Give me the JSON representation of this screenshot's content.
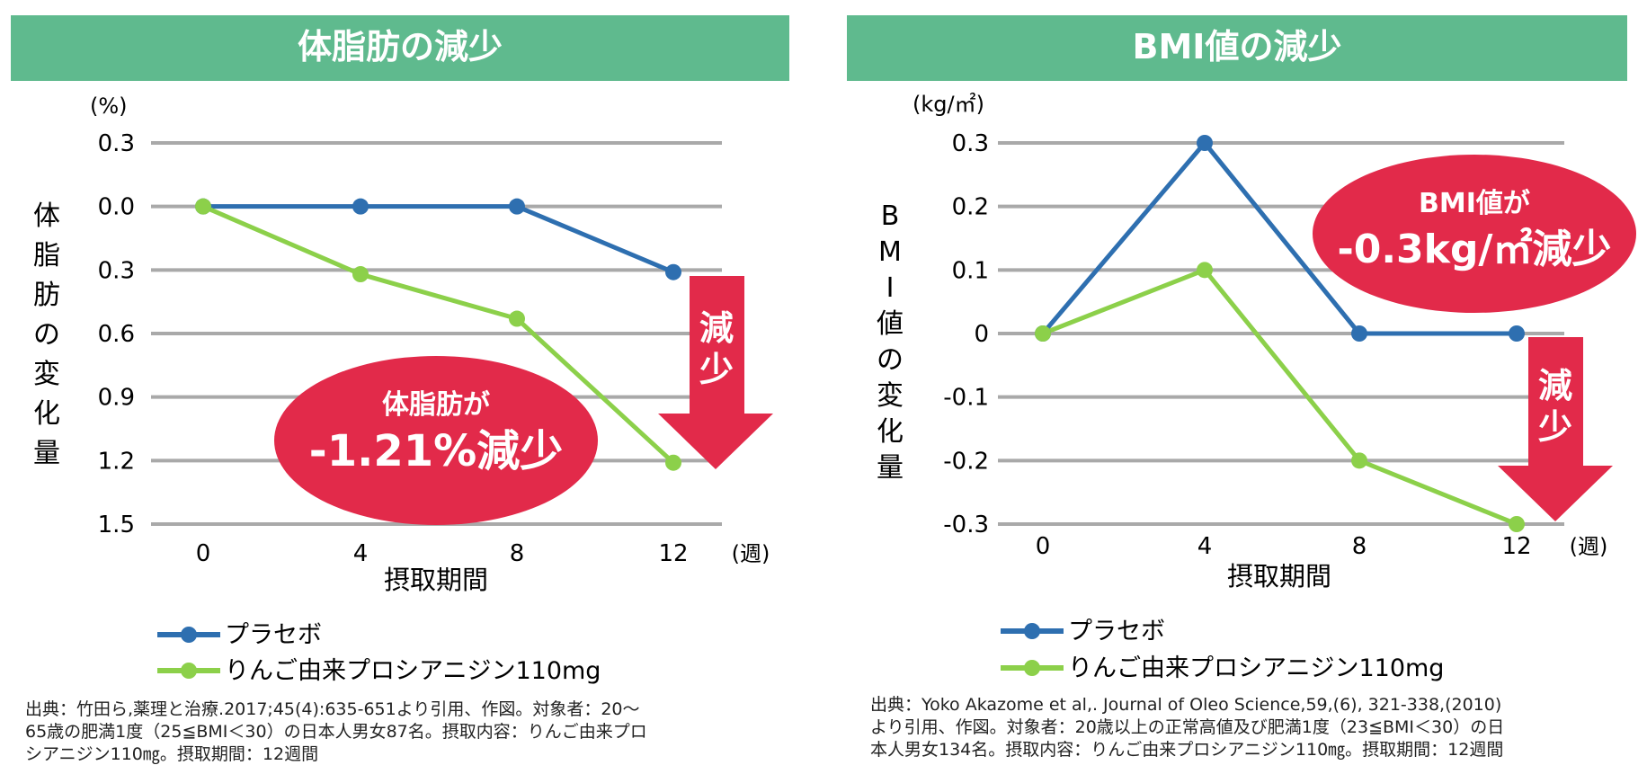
{
  "palette": {
    "header": "#5fba8e",
    "placebo": "#2e6fb0",
    "apple": "#8cd04a",
    "grid": "#a9a9a9",
    "callout": "#e22a4a"
  },
  "legend": {
    "placebo": "プラセボ",
    "apple": "りんご由来プロシアニジン110mg"
  },
  "chart_data": [
    {
      "type": "line",
      "title": "体脂肪の減少",
      "unit_label": "(%)",
      "ylabel": "体脂肪の変化量",
      "xlabel": "摂取期間",
      "x_unit": "(週)",
      "x": [
        0,
        4,
        8,
        12
      ],
      "x_tick_labels": [
        "0",
        "4",
        "8",
        "12"
      ],
      "ylim": [
        -1.5,
        0.3
      ],
      "y_ticks": [
        0.3,
        0.0,
        -0.3,
        -0.6,
        -0.9,
        -1.2,
        -1.5
      ],
      "y_tick_labels": [
        "0.3",
        "0.0",
        "0.3",
        "0.6",
        "0.9",
        "1.2",
        "1.5"
      ],
      "series": [
        {
          "name": "プラセボ",
          "values": [
            0.0,
            0.0,
            0.0,
            -0.31
          ]
        },
        {
          "name": "りんご由来プロシアニジン110mg",
          "values": [
            0.0,
            -0.32,
            -0.53,
            -1.21
          ]
        }
      ],
      "callout_line1": "体脂肪が",
      "callout_line2": "-1.21%減少",
      "arrow_label_1": "減",
      "arrow_label_2": "少",
      "source_lines": [
        "出典：竹田ら,薬理と治療.2017;45(4):635-651より引用、作図。対象者：20～",
        "65歳の肥満1度（25≦BMI＜30）の日本人男女87名。摂取内容：りんご由来プロ",
        "シアニジン110㎎。摂取期間：12週間"
      ]
    },
    {
      "type": "line",
      "title": "BMI値の減少",
      "unit_label": "(kg/㎡)",
      "ylabel": "BMI値の変化量",
      "xlabel": "摂取期間",
      "x_unit": "(週)",
      "x": [
        0,
        4,
        8,
        12
      ],
      "x_tick_labels": [
        "0",
        "4",
        "8",
        "12"
      ],
      "ylim": [
        -0.3,
        0.3
      ],
      "y_ticks": [
        0.3,
        0.2,
        0.1,
        0,
        -0.1,
        -0.2,
        -0.3
      ],
      "y_tick_labels": [
        "0.3",
        "0.2",
        "0.1",
        "0",
        "-0.1",
        "-0.2",
        "-0.3"
      ],
      "series": [
        {
          "name": "プラセボ",
          "values": [
            0,
            0.3,
            0.0,
            0.0
          ]
        },
        {
          "name": "りんご由来プロシアニジン110mg",
          "values": [
            0,
            0.1,
            -0.2,
            -0.3
          ]
        }
      ],
      "callout_line1": "BMI値が",
      "callout_line2": "-0.3kg/㎡減少",
      "arrow_label_1": "減",
      "arrow_label_2": "少",
      "source_lines": [
        "出典：Yoko Akazome et al,. Journal of Oleo Science,59,(6), 321-338,(2010)",
        "より引用、作図。対象者：20歳以上の正常高値及び肥満1度（23≦BMI＜30）の日",
        "本人男女134名。摂取内容：りんご由来プロシアニジン110㎎。摂取期間：12週間"
      ]
    }
  ]
}
